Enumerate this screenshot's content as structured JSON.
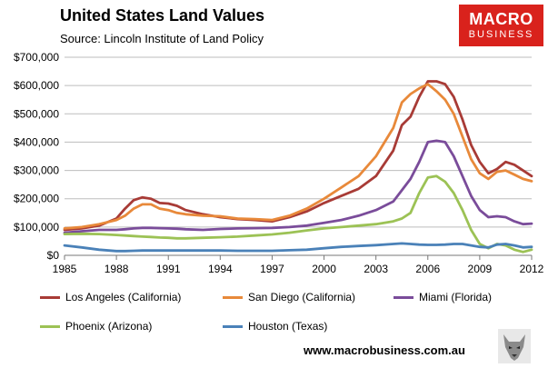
{
  "header": {
    "title": "United States Land Values",
    "subtitle": "Source: Lincoln Institute of Land Policy"
  },
  "logo": {
    "line1": "MACRO",
    "line2": "BUSINESS"
  },
  "footer": {
    "url": "www.macrobusiness.com.au"
  },
  "colors": {
    "los_angeles": "#a83b36",
    "san_diego": "#e8893a",
    "miami": "#7a4c9a",
    "phoenix": "#9cc255",
    "houston": "#4a81b8"
  },
  "chart_data": {
    "type": "line",
    "title": "United States Land Values",
    "xlabel": "",
    "ylabel": "",
    "xlim": [
      1985,
      2012
    ],
    "ylim": [
      0,
      700000
    ],
    "x_ticks": [
      "1985",
      "1988",
      "1991",
      "1994",
      "1997",
      "2000",
      "2003",
      "2006",
      "2009",
      "2012"
    ],
    "y_ticks": [
      "$0",
      "$100,000",
      "$200,000",
      "$300,000",
      "$400,000",
      "$500,000",
      "$600,000",
      "$700,000"
    ],
    "grid": true,
    "legend_position": "bottom",
    "x": [
      1985,
      1986,
      1987,
      1988,
      1988.5,
      1989,
      1989.5,
      1990,
      1990.5,
      1991,
      1991.5,
      1992,
      1993,
      1994,
      1995,
      1996,
      1997,
      1998,
      1999,
      2000,
      2001,
      2002,
      2003,
      2004,
      2004.5,
      2005,
      2005.5,
      2006,
      2006.5,
      2007,
      2007.5,
      2008,
      2008.5,
      2009,
      2009.5,
      2010,
      2010.5,
      2011,
      2011.5,
      2012
    ],
    "series": [
      {
        "name": "Los Angeles (California)",
        "color_key": "los_angeles",
        "values": [
          90000,
          95000,
          105000,
          130000,
          165000,
          195000,
          205000,
          200000,
          185000,
          183000,
          175000,
          160000,
          145000,
          135000,
          128000,
          125000,
          120000,
          135000,
          155000,
          185000,
          210000,
          235000,
          280000,
          370000,
          460000,
          490000,
          560000,
          615000,
          615000,
          605000,
          560000,
          480000,
          390000,
          330000,
          290000,
          305000,
          330000,
          320000,
          300000,
          280000
        ]
      },
      {
        "name": "San Diego (California)",
        "color_key": "san_diego",
        "values": [
          95000,
          100000,
          110000,
          125000,
          140000,
          165000,
          180000,
          180000,
          165000,
          160000,
          150000,
          145000,
          140000,
          138000,
          130000,
          128000,
          125000,
          140000,
          165000,
          200000,
          240000,
          280000,
          350000,
          450000,
          540000,
          570000,
          590000,
          605000,
          580000,
          550000,
          500000,
          420000,
          340000,
          290000,
          270000,
          295000,
          300000,
          285000,
          270000,
          262000
        ]
      },
      {
        "name": "Miami (Florida)",
        "color_key": "miami",
        "values": [
          80000,
          85000,
          90000,
          90000,
          92000,
          95000,
          97000,
          97000,
          96000,
          95000,
          94000,
          92000,
          90000,
          93000,
          95000,
          96000,
          97000,
          100000,
          105000,
          115000,
          125000,
          140000,
          160000,
          190000,
          230000,
          270000,
          330000,
          400000,
          405000,
          400000,
          350000,
          280000,
          210000,
          160000,
          135000,
          138000,
          135000,
          120000,
          110000,
          112000
        ]
      },
      {
        "name": "Phoenix (Arizona)",
        "color_key": "phoenix",
        "values": [
          75000,
          76000,
          75000,
          72000,
          70000,
          68000,
          66000,
          65000,
          63000,
          62000,
          60000,
          60000,
          62000,
          64000,
          66000,
          70000,
          74000,
          80000,
          88000,
          95000,
          100000,
          105000,
          110000,
          120000,
          130000,
          150000,
          220000,
          275000,
          280000,
          260000,
          220000,
          160000,
          90000,
          40000,
          25000,
          40000,
          35000,
          20000,
          12000,
          20000
        ]
      },
      {
        "name": "Houston (Texas)",
        "color_key": "houston",
        "values": [
          35000,
          28000,
          20000,
          15000,
          15000,
          16000,
          17000,
          17000,
          17000,
          17000,
          17000,
          17000,
          17000,
          17000,
          16000,
          16000,
          16000,
          18000,
          20000,
          25000,
          30000,
          33000,
          36000,
          40000,
          42000,
          40000,
          38000,
          37000,
          37000,
          38000,
          40000,
          40000,
          35000,
          30000,
          28000,
          38000,
          40000,
          35000,
          28000,
          30000
        ]
      }
    ]
  }
}
